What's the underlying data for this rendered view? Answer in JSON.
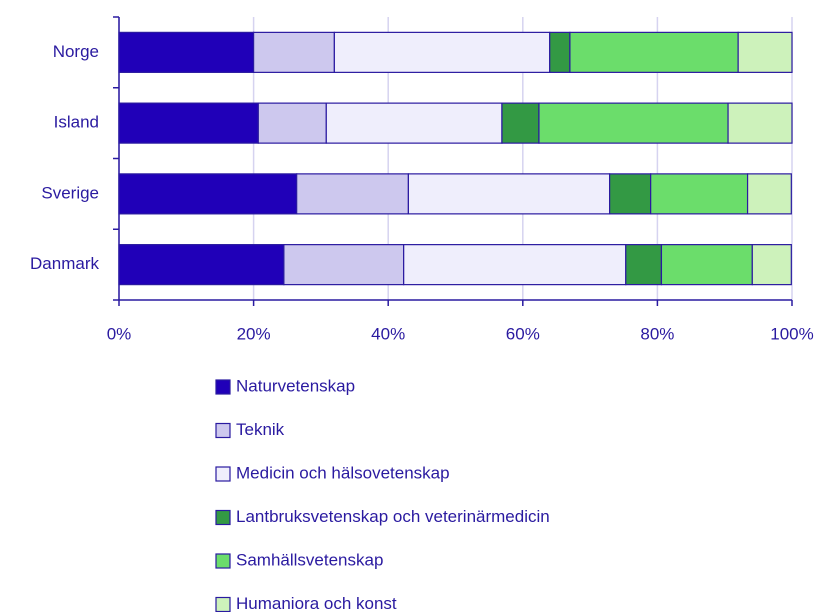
{
  "chart_data": {
    "type": "stacked-bar-horizontal",
    "categories": [
      "Norge",
      "Island",
      "Sverige",
      "Danmark"
    ],
    "series": [
      {
        "name": "Naturvetenskap",
        "color": "#2000b8",
        "values": [
          20,
          20.7,
          26.4,
          24.5
        ]
      },
      {
        "name": "Teknik",
        "color": "#cdc8ee",
        "values": [
          12,
          10.1,
          16.6,
          17.8
        ]
      },
      {
        "name": "Medicin och hälsovetenskap",
        "color": "#efeefc",
        "values": [
          32,
          26.1,
          29.9,
          33.0
        ]
      },
      {
        "name": "Lantbruksvetenskap och veterinärmedicin",
        "color": "#339944",
        "values": [
          3,
          5.5,
          6.1,
          5.3
        ]
      },
      {
        "name": "Samhällsvetenskap",
        "color": "#6bdd6b",
        "values": [
          25,
          28.1,
          14.4,
          13.5
        ]
      },
      {
        "name": "Humaniora och konst",
        "color": "#cdf2bb",
        "values": [
          8,
          9.5,
          6.5,
          5.8
        ]
      }
    ],
    "xlim": [
      0,
      100
    ],
    "xticks": [
      {
        "value": 0,
        "label": "0%"
      },
      {
        "value": 20,
        "label": "20%"
      },
      {
        "value": 40,
        "label": "40%"
      },
      {
        "value": 60,
        "label": "60%"
      },
      {
        "value": 80,
        "label": "80%"
      },
      {
        "value": 100,
        "label": "100%"
      }
    ],
    "grid": true
  }
}
